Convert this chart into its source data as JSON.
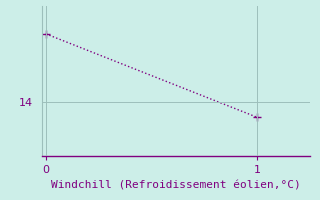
{
  "x_data": [
    0,
    1
  ],
  "y_data": [
    17.2,
    13.3
  ],
  "line_color": "#800080",
  "bg_color": "#cceee8",
  "grid_color": "#9dbfbb",
  "axis_color": "#800080",
  "xlabel": "Windchill (Refroidissement éolien,°C)",
  "xlabel_color": "#800080",
  "xlabel_fontsize": 8,
  "tick_color": "#800080",
  "tick_fontsize": 8,
  "xlim": [
    -0.02,
    1.25
  ],
  "ylim": [
    11.5,
    18.5
  ],
  "yticks": [
    14
  ],
  "xticks": [
    0,
    1
  ],
  "marker": "+",
  "marker_size": 6,
  "linewidth": 1.0,
  "linestyle": ":"
}
